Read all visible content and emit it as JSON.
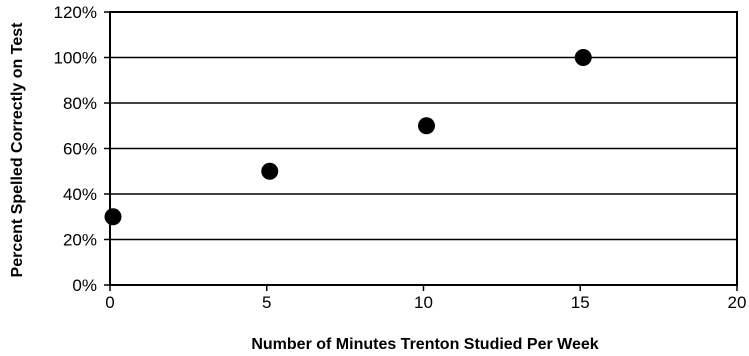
{
  "chart_data": {
    "type": "scatter",
    "xlabel": "Number of Minutes Trenton Studied Per Week",
    "ylabel": "Percent Spelled Correctly on Test",
    "xlim": [
      0,
      20
    ],
    "ylim": [
      0,
      120
    ],
    "x_ticks": [
      0,
      5,
      10,
      15,
      20
    ],
    "y_ticks": [
      0,
      20,
      40,
      60,
      80,
      100,
      120
    ],
    "x_tick_labels": [
      "0",
      "5",
      "10",
      "15",
      "20"
    ],
    "y_tick_labels": [
      "0%",
      "20%",
      "40%",
      "60%",
      "80%",
      "100%",
      "120%"
    ],
    "grid": "horizontal",
    "series": [
      {
        "x": [
          0,
          5,
          10,
          15
        ],
        "y": [
          30,
          50,
          70,
          100
        ]
      }
    ]
  }
}
